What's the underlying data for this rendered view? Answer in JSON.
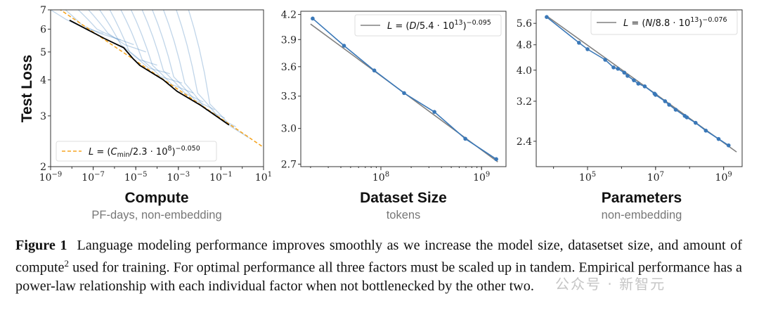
{
  "chart_data": [
    {
      "type": "line",
      "xscale": "log",
      "yscale": "log",
      "xlim": [
        1e-09,
        10
      ],
      "ylim": [
        2,
        7
      ],
      "title": "Compute",
      "subtitle": "PF-days, non-embedding",
      "ylabel": "Test Loss",
      "xticks": [
        {
          "base": "10",
          "exp": "−9",
          "v": 1e-09
        },
        {
          "base": "10",
          "exp": "−7",
          "v": 1e-07
        },
        {
          "base": "10",
          "exp": "−5",
          "v": 1e-05
        },
        {
          "base": "10",
          "exp": "−3",
          "v": 0.001
        },
        {
          "base": "10",
          "exp": "−1",
          "v": 0.1
        },
        {
          "base": "10",
          "exp": "1",
          "v": 10
        }
      ],
      "yticks": [
        {
          "label": "2",
          "v": 2
        },
        {
          "label": "3",
          "v": 3
        },
        {
          "label": "4",
          "v": 4
        },
        {
          "label": "5",
          "v": 5
        },
        {
          "label": "6",
          "v": 6
        },
        {
          "label": "7",
          "v": 7
        }
      ],
      "legend_position": "lower-left",
      "legend": [
        {
          "t": "L",
          "s": "it"
        },
        {
          "t": " = ("
        },
        {
          "t": "C",
          "s": "it"
        },
        {
          "t": "min",
          "s": "sub"
        },
        {
          "t": "/2.3 · 10"
        },
        {
          "t": "8",
          "s": "sup"
        },
        {
          "t": ")"
        },
        {
          "t": "−0.050",
          "s": "sup"
        }
      ],
      "fit": {
        "coef": 230000000.0,
        "exponent": -0.05,
        "color": "#f5a623",
        "style": "dashed"
      },
      "learning_curves_color": "#4a86c0",
      "learning_curves": [
        [
          [
            1e-09,
            7.0
          ],
          [
            5e-09,
            6.5
          ],
          [
            3e-08,
            6.1
          ],
          [
            3e-07,
            5.8
          ]
        ],
        [
          [
            5e-09,
            7.0
          ],
          [
            3e-08,
            6.2
          ],
          [
            2e-07,
            5.8
          ],
          [
            2e-06,
            5.5
          ]
        ],
        [
          [
            2e-08,
            7.0
          ],
          [
            1.5e-07,
            6.0
          ],
          [
            1e-06,
            5.6
          ],
          [
            8e-06,
            5.3
          ]
        ],
        [
          [
            6e-08,
            7.0
          ],
          [
            5e-07,
            5.8
          ],
          [
            3e-06,
            5.3
          ],
          [
            3e-05,
            5.0
          ]
        ],
        [
          [
            2e-07,
            7.0
          ],
          [
            2e-06,
            5.3
          ],
          [
            1.5e-05,
            4.7
          ],
          [
            0.0001,
            4.5
          ]
        ],
        [
          [
            6e-07,
            7.0
          ],
          [
            5e-06,
            5.0
          ],
          [
            4e-05,
            4.4
          ],
          [
            0.0004,
            4.2
          ]
        ],
        [
          [
            2e-06,
            7.0
          ],
          [
            2e-05,
            4.7
          ],
          [
            0.00015,
            4.1
          ],
          [
            0.0015,
            3.9
          ]
        ],
        [
          [
            6e-06,
            7.0
          ],
          [
            6e-05,
            4.5
          ],
          [
            0.0005,
            3.85
          ],
          [
            0.005,
            3.6
          ]
        ],
        [
          [
            2e-05,
            7.0
          ],
          [
            0.0002,
            4.3
          ],
          [
            0.002,
            3.6
          ],
          [
            0.015,
            3.35
          ]
        ],
        [
          [
            6e-05,
            7.0
          ],
          [
            0.0006,
            4.1
          ],
          [
            0.006,
            3.4
          ],
          [
            0.05,
            3.15
          ]
        ],
        [
          [
            0.0002,
            7.0
          ],
          [
            0.002,
            3.9
          ],
          [
            0.02,
            3.15
          ],
          [
            0.15,
            2.95
          ]
        ],
        [
          [
            0.0008,
            7.0
          ],
          [
            0.008,
            3.6
          ],
          [
            0.08,
            2.95
          ],
          [
            0.5,
            2.75
          ]
        ],
        [
          [
            0.003,
            7.0
          ],
          [
            0.03,
            3.3
          ],
          [
            0.3,
            2.75
          ],
          [
            2,
            2.52
          ]
        ]
      ],
      "frontier_color": "#000000",
      "frontier": [
        [
          7.8e-09,
          6.44
        ],
        [
          6e-08,
          5.95
        ],
        [
          3.5e-07,
          5.56
        ],
        [
          2.7e-06,
          5.17
        ],
        [
          7.2e-06,
          4.75
        ],
        [
          1.55e-05,
          4.49
        ],
        [
          0.00019,
          4.01
        ],
        [
          0.00087,
          3.65
        ],
        [
          0.0115,
          3.26
        ],
        [
          0.24,
          2.79
        ]
      ]
    },
    {
      "type": "line",
      "xscale": "log",
      "yscale": "log",
      "xlim": [
        16000000.0,
        1750000000.0
      ],
      "ylim": [
        2.68,
        4.24
      ],
      "title": "Dataset Size",
      "subtitle": "tokens",
      "xticks": [
        {
          "base": "10",
          "exp": "8",
          "v": 100000000.0
        },
        {
          "base": "10",
          "exp": "9",
          "v": 1000000000.0
        }
      ],
      "yticks": [
        {
          "label": "2.7",
          "v": 2.7
        },
        {
          "label": "3.0",
          "v": 3.0
        },
        {
          "label": "3.3",
          "v": 3.3
        },
        {
          "label": "3.6",
          "v": 3.6
        },
        {
          "label": "3.9",
          "v": 3.9
        },
        {
          "label": "4.2",
          "v": 4.2
        }
      ],
      "legend_position": "upper-right",
      "legend": [
        {
          "t": "L",
          "s": "it"
        },
        {
          "t": " = ("
        },
        {
          "t": "D",
          "s": "it"
        },
        {
          "t": "/5.4 · 10"
        },
        {
          "t": "13",
          "s": "sup"
        },
        {
          "t": ")"
        },
        {
          "t": "−0.095",
          "s": "sup"
        }
      ],
      "fit": {
        "coef": 54000000000000.0,
        "exponent": -0.095,
        "color": "#808080",
        "range": [
          20000000.0,
          1450000000.0
        ]
      },
      "series_color": "#3a78b8",
      "x": [
        21000000.0,
        43000000.0,
        86000000.0,
        170000000.0,
        340000000.0,
        690000000.0,
        1400000000.0
      ],
      "y": [
        4.15,
        3.83,
        3.56,
        3.33,
        3.15,
        2.91,
        2.74
      ]
    },
    {
      "type": "line",
      "xscale": "log",
      "yscale": "log",
      "xlim": [
        3100.0,
        3500000000.0
      ],
      "ylim": [
        2.0,
        6.17
      ],
      "title": "Parameters",
      "subtitle": "non-embedding",
      "xticks": [
        {
          "base": "10",
          "exp": "5",
          "v": 100000.0
        },
        {
          "base": "10",
          "exp": "7",
          "v": 10000000.0
        },
        {
          "base": "10",
          "exp": "9",
          "v": 1000000000.0
        }
      ],
      "yticks": [
        {
          "label": "2.4",
          "v": 2.4
        },
        {
          "label": "3.2",
          "v": 3.2
        },
        {
          "label": "4.0",
          "v": 4.0
        },
        {
          "label": "4.8",
          "v": 4.8
        },
        {
          "label": "5.6",
          "v": 5.6
        }
      ],
      "legend_position": "upper-right",
      "legend": [
        {
          "t": "L",
          "s": "it"
        },
        {
          "t": " = ("
        },
        {
          "t": "N",
          "s": "it"
        },
        {
          "t": "/8.8 · 10"
        },
        {
          "t": "13",
          "s": "sup"
        },
        {
          "t": ")"
        },
        {
          "t": "−0.076",
          "s": "sup"
        }
      ],
      "fit": {
        "coef": 88000000000000.0,
        "exponent": -0.076,
        "color": "#808080",
        "range": [
          6300.0,
          2400000000.0
        ]
      },
      "series_color": "#3a78b8",
      "x": [
        6300.0,
        56000.0,
        100000.0,
        330000.0,
        580000.0,
        780000.0,
        1200000.0,
        1500000.0,
        2300000.0,
        3100000.0,
        4800000.0,
        9300000.0,
        10000000.0,
        19000000.0,
        25000000.0,
        39000000.0,
        72000000.0,
        83000000.0,
        150000000.0,
        300000000.0,
        710000000.0,
        1400000000.0
      ],
      "y": [
        5.86,
        4.87,
        4.65,
        4.31,
        4.08,
        4.04,
        3.93,
        3.84,
        3.72,
        3.63,
        3.56,
        3.38,
        3.35,
        3.2,
        3.12,
        3.01,
        2.88,
        2.85,
        2.74,
        2.59,
        2.44,
        2.33
      ]
    }
  ],
  "caption": {
    "label": "Figure 1",
    "text": "Language modeling performance improves smoothly as we increase the model size, datasetset size, and amount of compute",
    "footnote": "2",
    "text2": " used for training. For optimal performance all three factors must be scaled up in tandem. Empirical performance has a power-law relationship with each individual factor when not bottlenecked by the other two."
  },
  "watermark": "公众号 · 新智元"
}
